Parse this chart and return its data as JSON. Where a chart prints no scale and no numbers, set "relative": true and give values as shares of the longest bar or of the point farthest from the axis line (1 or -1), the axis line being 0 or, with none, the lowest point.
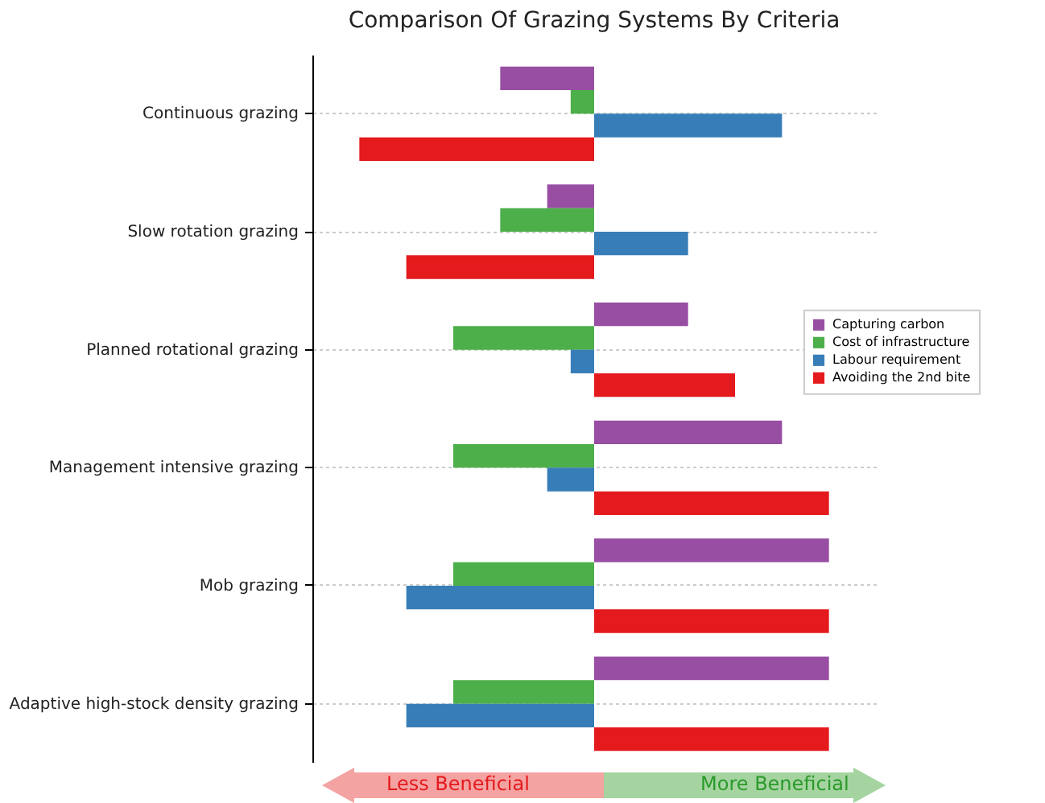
{
  "chart_data": {
    "type": "bar",
    "orientation": "horizontal",
    "relative": true,
    "title": "Comparison Of Grazing Systems By Criteria",
    "categories": [
      "Continuous grazing",
      "Slow rotation grazing",
      "Planned rotational grazing",
      "Management intensive grazing",
      "Mob grazing",
      "Adaptive high-stock density grazing"
    ],
    "series": [
      {
        "name": "Capturing carbon",
        "color": "#984ea3",
        "values": [
          -0.4,
          -0.2,
          0.4,
          0.8,
          1,
          1
        ]
      },
      {
        "name": "Cost of infrastructure",
        "color": "#4daf4a",
        "values": [
          -0.1,
          -0.4,
          -0.6,
          -0.6,
          -0.6,
          -0.6
        ]
      },
      {
        "name": "Labour requirement",
        "color": "#377eb8",
        "values": [
          0.8,
          0.4,
          -0.1,
          -0.2,
          -0.8,
          -0.8
        ]
      },
      {
        "name": "Avoiding the 2nd bite",
        "color": "#e41a1c",
        "values": [
          -1,
          -0.8,
          0.6,
          1,
          1,
          1
        ]
      }
    ],
    "annotations": [
      "Less Beneficial",
      "More Beneficial"
    ],
    "grid": "y",
    "legend": "right"
  }
}
